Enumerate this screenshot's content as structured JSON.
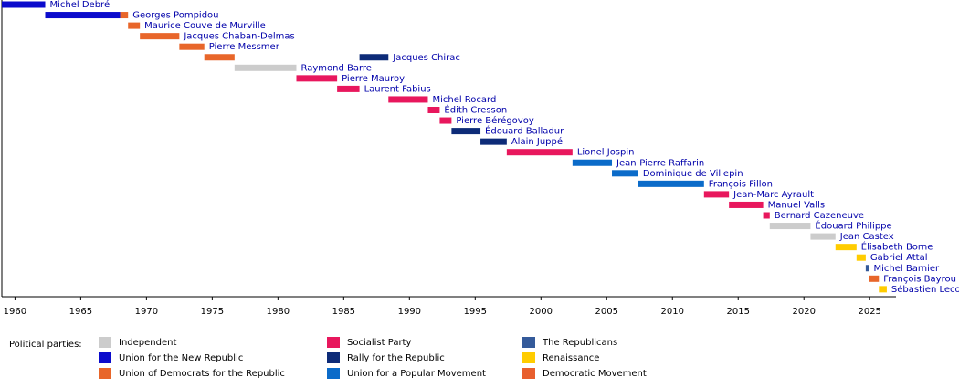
{
  "chart_data": {
    "type": "timeline",
    "xlim": [
      1959,
      2027
    ],
    "xticks": [
      1960,
      1965,
      1970,
      1975,
      1980,
      1985,
      1990,
      1995,
      2000,
      2005,
      2010,
      2015,
      2020,
      2025
    ],
    "terms": [
      {
        "name": "Michel Debré",
        "segments": [
          {
            "start": 1959.0,
            "end": 1962.3,
            "color": "#0b0bcc"
          }
        ]
      },
      {
        "name": "Georges Pompidou",
        "segments": [
          {
            "start": 1962.3,
            "end": 1968.0,
            "color": "#0b0bcc"
          },
          {
            "start": 1968.0,
            "end": 1968.6,
            "color": "#e8662a"
          }
        ]
      },
      {
        "name": "Maurice Couve de Murville",
        "segments": [
          {
            "start": 1968.6,
            "end": 1969.5,
            "color": "#e8662a"
          }
        ]
      },
      {
        "name": "Jacques Chaban-Delmas",
        "segments": [
          {
            "start": 1969.5,
            "end": 1972.5,
            "color": "#e8662a"
          }
        ]
      },
      {
        "name": "Pierre Messmer",
        "segments": [
          {
            "start": 1972.5,
            "end": 1974.4,
            "color": "#e8662a"
          }
        ]
      },
      {
        "name": "Jacques Chirac",
        "segments": [
          {
            "start": 1974.4,
            "end": 1976.7,
            "color": "#e8662a"
          },
          {
            "start": 1986.2,
            "end": 1988.4,
            "color": "#0d2b78"
          }
        ]
      },
      {
        "name": "Raymond Barre",
        "segments": [
          {
            "start": 1976.7,
            "end": 1981.4,
            "color": "#cccccc"
          }
        ]
      },
      {
        "name": "Pierre Mauroy",
        "segments": [
          {
            "start": 1981.4,
            "end": 1984.5,
            "color": "#e8175d"
          }
        ]
      },
      {
        "name": "Laurent Fabius",
        "segments": [
          {
            "start": 1984.5,
            "end": 1986.2,
            "color": "#e8175d"
          }
        ]
      },
      {
        "name": "Michel Rocard",
        "segments": [
          {
            "start": 1988.4,
            "end": 1991.4,
            "color": "#e8175d"
          }
        ]
      },
      {
        "name": "Édith Cresson",
        "segments": [
          {
            "start": 1991.4,
            "end": 1992.3,
            "color": "#e8175d"
          }
        ]
      },
      {
        "name": "Pierre Bérégovoy",
        "segments": [
          {
            "start": 1992.3,
            "end": 1993.2,
            "color": "#e8175d"
          }
        ]
      },
      {
        "name": "Édouard Balladur",
        "segments": [
          {
            "start": 1993.2,
            "end": 1995.4,
            "color": "#0d2b78"
          }
        ]
      },
      {
        "name": "Alain Juppé",
        "segments": [
          {
            "start": 1995.4,
            "end": 1997.4,
            "color": "#0d2b78"
          }
        ]
      },
      {
        "name": "Lionel Jospin",
        "segments": [
          {
            "start": 1997.4,
            "end": 2002.4,
            "color": "#e8175d"
          }
        ]
      },
      {
        "name": "Jean-Pierre Raffarin",
        "segments": [
          {
            "start": 2002.4,
            "end": 2005.4,
            "color": "#0b6bc9"
          }
        ]
      },
      {
        "name": "Dominique de Villepin",
        "segments": [
          {
            "start": 2005.4,
            "end": 2007.4,
            "color": "#0b6bc9"
          }
        ]
      },
      {
        "name": "François Fillon",
        "segments": [
          {
            "start": 2007.4,
            "end": 2012.4,
            "color": "#0b6bc9"
          }
        ]
      },
      {
        "name": "Jean-Marc Ayrault",
        "segments": [
          {
            "start": 2012.4,
            "end": 2014.3,
            "color": "#e8175d"
          }
        ]
      },
      {
        "name": "Manuel Valls",
        "segments": [
          {
            "start": 2014.3,
            "end": 2016.9,
            "color": "#e8175d"
          }
        ]
      },
      {
        "name": "Bernard Cazeneuve",
        "segments": [
          {
            "start": 2016.9,
            "end": 2017.4,
            "color": "#e8175d"
          }
        ]
      },
      {
        "name": "Édouard Philippe",
        "segments": [
          {
            "start": 2017.4,
            "end": 2020.5,
            "color": "#cccccc"
          }
        ]
      },
      {
        "name": "Jean Castex",
        "segments": [
          {
            "start": 2020.5,
            "end": 2022.4,
            "color": "#cccccc"
          }
        ]
      },
      {
        "name": "Élisabeth Borne",
        "segments": [
          {
            "start": 2022.4,
            "end": 2024.0,
            "color": "#ffcc00"
          }
        ]
      },
      {
        "name": "Gabriel Attal",
        "segments": [
          {
            "start": 2024.0,
            "end": 2024.7,
            "color": "#ffcc00"
          }
        ]
      },
      {
        "name": "Michel Barnier",
        "segments": [
          {
            "start": 2024.7,
            "end": 2024.95,
            "color": "#345a9a"
          }
        ]
      },
      {
        "name": "François Bayrou",
        "segments": [
          {
            "start": 2024.95,
            "end": 2025.7,
            "color": "#e8662a"
          }
        ]
      },
      {
        "name": "Sébastien Lecornu",
        "segments": [
          {
            "start": 2025.7,
            "end": 2026.3,
            "color": "#ffcc00"
          }
        ]
      }
    ],
    "legend_title": "Political parties:",
    "parties": [
      {
        "name": "Independent",
        "color": "#cccccc"
      },
      {
        "name": "Union for the New Republic",
        "color": "#0b0bcc"
      },
      {
        "name": "Union of Democrats for the Republic",
        "color": "#e8662a"
      },
      {
        "name": "Socialist Party",
        "color": "#e8175d"
      },
      {
        "name": "Rally for the Republic",
        "color": "#0d2b78"
      },
      {
        "name": "Union for a Popular Movement",
        "color": "#0b6bc9"
      },
      {
        "name": "The Republicans",
        "color": "#345a9a"
      },
      {
        "name": "Renaissance",
        "color": "#ffcc00"
      },
      {
        "name": "Democratic Movement",
        "color": "#e85f2e"
      }
    ]
  }
}
